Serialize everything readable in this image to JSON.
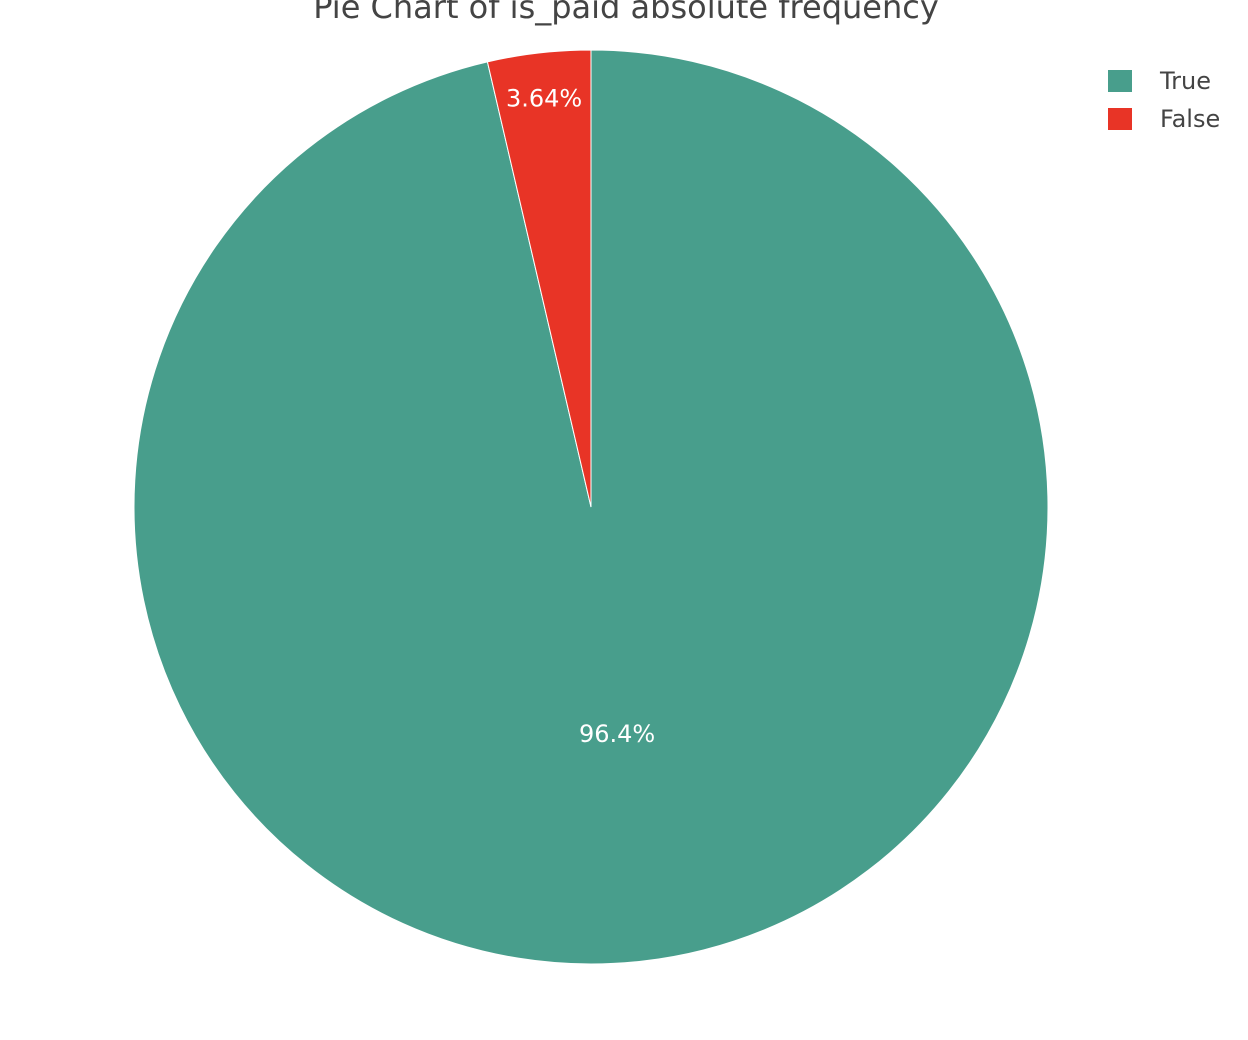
{
  "chart_data": {
    "type": "pie",
    "title": "Pie Chart of is_paid absolute frequency",
    "slices": [
      {
        "label": "True",
        "percent": 96.4,
        "text": "96.4%",
        "color": "#489e8c"
      },
      {
        "label": "False",
        "percent": 3.64,
        "text": "3.64%",
        "color": "#e83426"
      }
    ],
    "start": "12 o'clock",
    "direction": "clockwise",
    "legend_position": "top-right"
  }
}
